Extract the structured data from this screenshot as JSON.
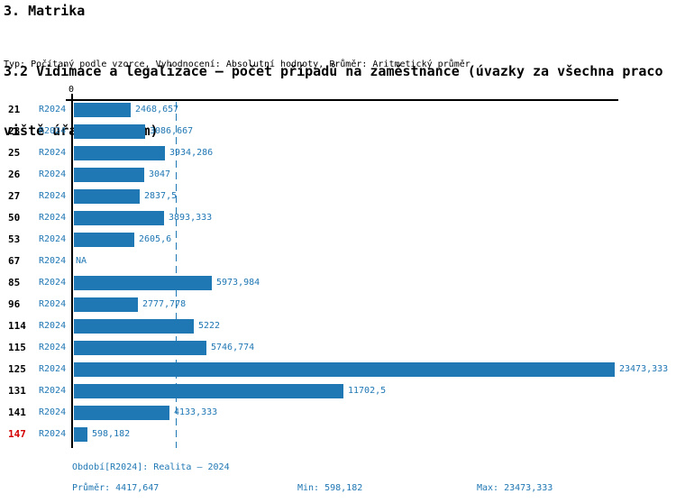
{
  "header": {
    "section_title": "3. Matrika",
    "subtitle_line1": "3.2 Vidimace a legalizace – počet případů na zaměstnance (úvazky za všechna praco",
    "subtitle_line2": "viště úřadu celkem)",
    "meta": "Typ: Počítaný podle vzorce, Vyhodnocení: Absolutní hodnoty, Průměr: Aritmetický průměr"
  },
  "chart_data": {
    "type": "bar",
    "orientation": "horizontal",
    "title": "3.2 Vidimace a legalizace – počet případů na zaměstnance (úvazky za všechna pracoviště úřadu celkem)",
    "categories": [
      "21",
      "23",
      "25",
      "26",
      "27",
      "50",
      "53",
      "67",
      "85",
      "96",
      "114",
      "115",
      "125",
      "131",
      "141",
      "147"
    ],
    "series": [
      {
        "name": "R2024",
        "values": [
          2468.657,
          3086.667,
          3934.286,
          3047,
          2837.5,
          3893.333,
          2605.6,
          null,
          5973.984,
          2777.778,
          5222,
          5746.774,
          23473.333,
          11702.5,
          4133.333,
          598.182
        ],
        "value_labels": [
          "2468,657",
          "3086,667",
          "3934,286",
          "3047",
          "2837,5",
          "3893,333",
          "2605,6",
          "NA",
          "5973,984",
          "2777,778",
          "5222",
          "5746,774",
          "23473,333",
          "11702,5",
          "4133,333",
          "598,182"
        ]
      }
    ],
    "na_label": "NA",
    "zero_label": "0",
    "xlim": [
      0,
      23473.333
    ],
    "average": 4417.647,
    "min": 598.182,
    "max": 23473.333,
    "highlighted_categories": [
      "147"
    ],
    "grid": false,
    "legend_position": "none"
  },
  "footer": {
    "period_legend": "Období[R2024]: Realita – 2024",
    "average_stat": "Průměr: 4417,647",
    "min_stat": "Min: 598,182",
    "max_stat": "Max: 23473,333"
  },
  "colors": {
    "bar": "#1F77B4",
    "blue_text": "#1F77B4",
    "highlight_red": "#D40000",
    "axis": "#000000",
    "background": "#FFFFFF"
  }
}
